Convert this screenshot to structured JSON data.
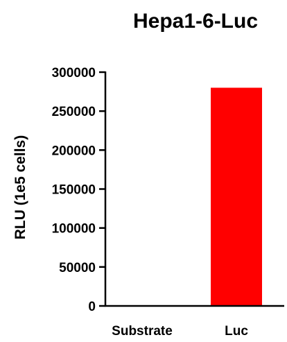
{
  "chart_data": {
    "type": "bar",
    "title": "Hepa1-6-Luc",
    "xlabel": "",
    "ylabel": "RLU (1e5 cells)",
    "categories": [
      "Substrate",
      "Luc"
    ],
    "values": [
      0,
      280000
    ],
    "ylim": [
      0,
      300000
    ],
    "yticks": [
      0,
      50000,
      100000,
      150000,
      200000,
      250000,
      300000
    ],
    "ytick_labels": [
      "0",
      "50000",
      "100000",
      "150000",
      "200000",
      "250000",
      "300000"
    ],
    "bar_color": "#ff0000",
    "grid": false,
    "legend": "none"
  }
}
